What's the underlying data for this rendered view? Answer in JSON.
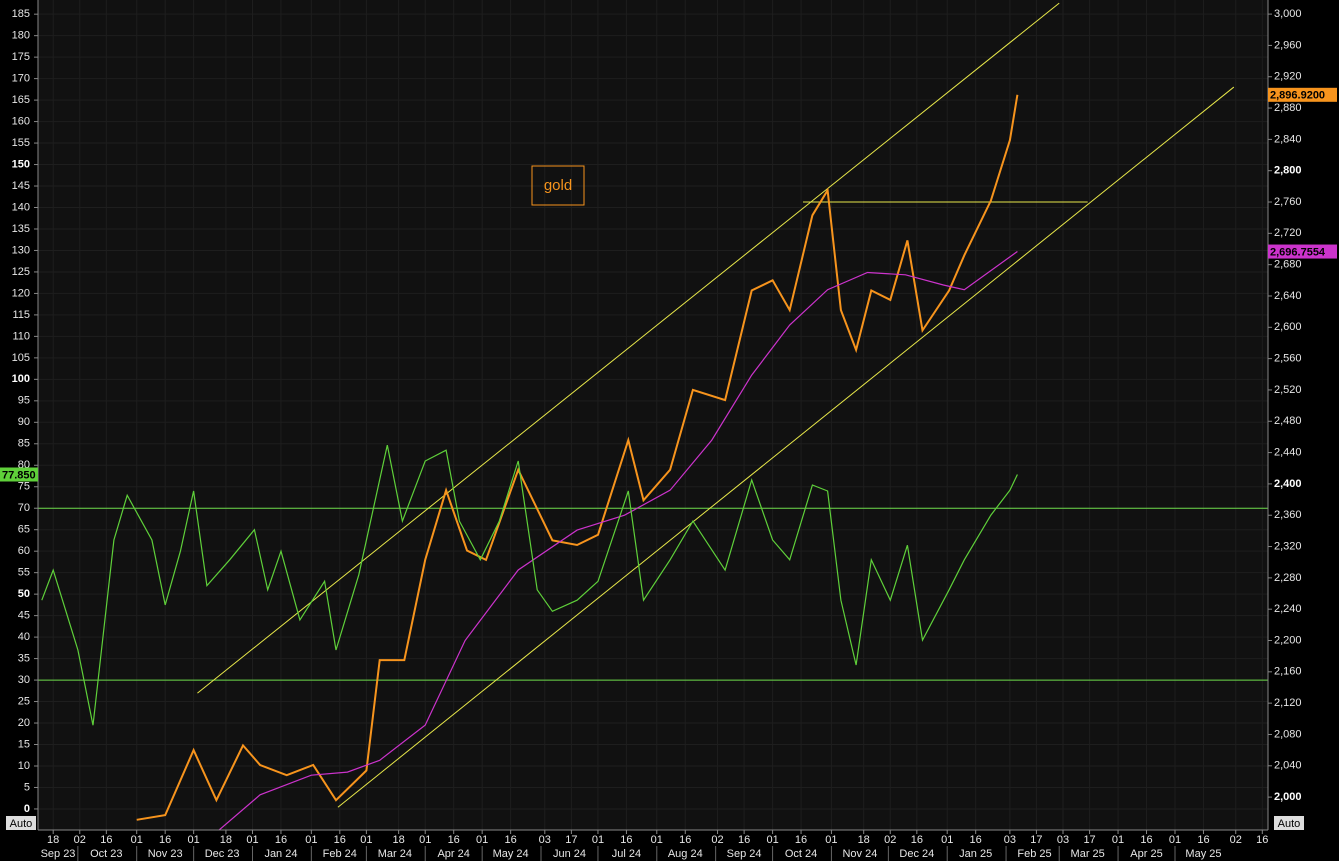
{
  "chart_data": {
    "type": "line",
    "xlim": [
      "2023-09-10",
      "2025-06-19"
    ],
    "ylim": [
      -4.9,
      188.3
    ],
    "y2lim": [
      1958,
      3018
    ],
    "yticks": [
      0,
      5,
      10,
      15,
      20,
      25,
      30,
      35,
      40,
      45,
      50,
      55,
      60,
      65,
      70,
      75,
      80,
      85,
      90,
      95,
      100,
      105,
      110,
      115,
      120,
      125,
      130,
      135,
      140,
      145,
      150,
      155,
      160,
      165,
      170,
      175,
      180,
      185
    ],
    "y2ticks": [
      {
        "value": 2000,
        "label": "2,000"
      },
      {
        "value": 2040,
        "label": "2,040"
      },
      {
        "value": 2080,
        "label": "2,080"
      },
      {
        "value": 2120,
        "label": "2,120"
      },
      {
        "value": 2160,
        "label": "2,160"
      },
      {
        "value": 2200,
        "label": "2,200"
      },
      {
        "value": 2240,
        "label": "2,240"
      },
      {
        "value": 2280,
        "label": "2,280"
      },
      {
        "value": 2320,
        "label": "2,320"
      },
      {
        "value": 2360,
        "label": "2,360"
      },
      {
        "value": 2400,
        "label": "2,400"
      },
      {
        "value": 2440,
        "label": "2,440"
      },
      {
        "value": 2480,
        "label": "2,480"
      },
      {
        "value": 2520,
        "label": "2,520"
      },
      {
        "value": 2560,
        "label": "2,560"
      },
      {
        "value": 2600,
        "label": "2,600"
      },
      {
        "value": 2640,
        "label": "2,640"
      },
      {
        "value": 2680,
        "label": "2,680"
      },
      {
        "value": 2720,
        "label": "2,720"
      },
      {
        "value": 2760,
        "label": "2,760"
      },
      {
        "value": 2800,
        "label": "2,800"
      },
      {
        "value": 2840,
        "label": "2,840"
      },
      {
        "value": 2880,
        "label": "2,880"
      },
      {
        "value": 2920,
        "label": "2,920"
      },
      {
        "value": 2960,
        "label": "2,960"
      },
      {
        "value": 3000,
        "label": "3,000"
      }
    ],
    "xticks": [
      {
        "value": "2023-09-18",
        "label": "18"
      },
      {
        "value": "2023-10-02",
        "label": "02"
      },
      {
        "value": "2023-10-16",
        "label": "16"
      },
      {
        "value": "2023-11-01",
        "label": "01"
      },
      {
        "value": "2023-11-16",
        "label": "16"
      },
      {
        "value": "2023-12-01",
        "label": "01"
      },
      {
        "value": "2023-12-18",
        "label": "18"
      },
      {
        "value": "2024-01-01",
        "label": "01"
      },
      {
        "value": "2024-01-16",
        "label": "16"
      },
      {
        "value": "2024-02-01",
        "label": "01"
      },
      {
        "value": "2024-02-16",
        "label": "16"
      },
      {
        "value": "2024-03-01",
        "label": "01"
      },
      {
        "value": "2024-03-18",
        "label": "18"
      },
      {
        "value": "2024-04-01",
        "label": "01"
      },
      {
        "value": "2024-04-16",
        "label": "16"
      },
      {
        "value": "2024-05-01",
        "label": "01"
      },
      {
        "value": "2024-05-16",
        "label": "16"
      },
      {
        "value": "2024-06-03",
        "label": "03"
      },
      {
        "value": "2024-06-17",
        "label": "17"
      },
      {
        "value": "2024-07-01",
        "label": "01"
      },
      {
        "value": "2024-07-16",
        "label": "16"
      },
      {
        "value": "2024-08-01",
        "label": "01"
      },
      {
        "value": "2024-08-16",
        "label": "16"
      },
      {
        "value": "2024-09-02",
        "label": "02"
      },
      {
        "value": "2024-09-16",
        "label": "16"
      },
      {
        "value": "2024-10-01",
        "label": "01"
      },
      {
        "value": "2024-10-16",
        "label": "16"
      },
      {
        "value": "2024-11-01",
        "label": "01"
      },
      {
        "value": "2024-11-18",
        "label": "18"
      },
      {
        "value": "2024-12-02",
        "label": "02"
      },
      {
        "value": "2024-12-16",
        "label": "16"
      },
      {
        "value": "2025-01-01",
        "label": "01"
      },
      {
        "value": "2025-01-16",
        "label": "16"
      },
      {
        "value": "2025-02-03",
        "label": "03"
      },
      {
        "value": "2025-02-17",
        "label": "17"
      },
      {
        "value": "2025-03-03",
        "label": "03"
      },
      {
        "value": "2025-03-17",
        "label": "17"
      },
      {
        "value": "2025-04-01",
        "label": "01"
      },
      {
        "value": "2025-04-16",
        "label": "16"
      },
      {
        "value": "2025-05-01",
        "label": "01"
      },
      {
        "value": "2025-05-16",
        "label": "16"
      },
      {
        "value": "2025-06-02",
        "label": "02"
      },
      {
        "value": "2025-06-16",
        "label": "16"
      }
    ],
    "month_ticks": [
      {
        "value": "2023-09-01",
        "label": "Sep 23"
      },
      {
        "value": "2023-10-01",
        "label": "Oct 23"
      },
      {
        "value": "2023-11-01",
        "label": "Nov 23"
      },
      {
        "value": "2023-12-01",
        "label": "Dec 23"
      },
      {
        "value": "2024-01-01",
        "label": "Jan 24"
      },
      {
        "value": "2024-02-01",
        "label": "Feb 24"
      },
      {
        "value": "2024-03-01",
        "label": "Mar 24"
      },
      {
        "value": "2024-04-01",
        "label": "Apr 24"
      },
      {
        "value": "2024-05-01",
        "label": "May 24"
      },
      {
        "value": "2024-06-01",
        "label": "Jun 24"
      },
      {
        "value": "2024-07-01",
        "label": "Jul 24"
      },
      {
        "value": "2024-08-01",
        "label": "Aug 24"
      },
      {
        "value": "2024-09-01",
        "label": "Sep 24"
      },
      {
        "value": "2024-10-01",
        "label": "Oct 24"
      },
      {
        "value": "2024-11-01",
        "label": "Nov 24"
      },
      {
        "value": "2024-12-01",
        "label": "Dec 24"
      },
      {
        "value": "2025-01-01",
        "label": "Jan 25"
      },
      {
        "value": "2025-02-01",
        "label": "Feb 25"
      },
      {
        "value": "2025-03-01",
        "label": "Mar 25"
      },
      {
        "value": "2025-04-01",
        "label": "Apr 25"
      },
      {
        "value": "2025-05-01",
        "label": "May 25"
      }
    ],
    "grid": true,
    "series": [
      {
        "name": "gold",
        "color": "#f7941d",
        "axis": "y2",
        "x": [
          "2023-11-01",
          "2023-11-16",
          "2023-12-01",
          "2023-12-13",
          "2023-12-27",
          "2024-01-05",
          "2024-01-19",
          "2024-02-02",
          "2024-02-14",
          "2024-03-01",
          "2024-03-08",
          "2024-03-21",
          "2024-04-01",
          "2024-04-12",
          "2024-04-23",
          "2024-05-03",
          "2024-05-20",
          "2024-06-07",
          "2024-06-20",
          "2024-07-01",
          "2024-07-17",
          "2024-07-25",
          "2024-08-08",
          "2024-08-20",
          "2024-09-06",
          "2024-09-20",
          "2024-10-01",
          "2024-10-10",
          "2024-10-22",
          "2024-10-30",
          "2024-11-06",
          "2024-11-14",
          "2024-11-22",
          "2024-12-02",
          "2024-12-11",
          "2024-12-19",
          "2025-01-02",
          "2025-01-10",
          "2025-01-24",
          "2025-02-03",
          "2025-02-07"
        ],
        "values": [
          1971,
          1977,
          2060,
          1996,
          2066,
          2041,
          2028,
          2041,
          1996,
          2034,
          2175,
          2175,
          2303,
          2392,
          2315,
          2303,
          2418,
          2328,
          2322,
          2335,
          2456,
          2379,
          2418,
          2520,
          2507,
          2647,
          2660,
          2622,
          2743,
          2775,
          2622,
          2571,
          2647,
          2635,
          2711,
          2596,
          2647,
          2692,
          2762,
          2839,
          2896.92
        ],
        "value_labels": [
          null,
          null,
          null,
          null,
          null,
          null,
          null,
          null,
          null,
          null,
          null,
          null,
          null,
          null,
          null,
          null,
          null,
          null,
          null,
          null,
          null,
          null,
          null,
          null,
          null,
          null,
          null,
          null,
          null,
          null,
          null,
          null,
          null,
          null,
          null,
          null,
          null,
          null,
          null,
          null,
          "2,896.9200"
        ]
      },
      {
        "color": "#cc33cc",
        "axis": "y2",
        "x": [
          "2023-12-13",
          "2024-01-05",
          "2024-02-01",
          "2024-02-20",
          "2024-03-08",
          "2024-04-01",
          "2024-04-22",
          "2024-05-20",
          "2024-06-20",
          "2024-07-15",
          "2024-08-08",
          "2024-08-30",
          "2024-09-20",
          "2024-10-10",
          "2024-10-30",
          "2024-11-20",
          "2024-12-10",
          "2024-12-30",
          "2025-01-10",
          "2025-02-07"
        ],
        "values": [
          1955,
          2003,
          2028,
          2032,
          2047,
          2092,
          2200,
          2290,
          2341,
          2360,
          2392,
          2456,
          2539,
          2603,
          2648,
          2670,
          2667,
          2654,
          2648,
          2696.7554
        ],
        "value_labels": [
          null,
          null,
          null,
          null,
          null,
          null,
          null,
          null,
          null,
          null,
          null,
          null,
          null,
          null,
          null,
          null,
          null,
          null,
          null,
          "2,696.7554"
        ]
      },
      {
        "color": "#5fd03a",
        "axis": "y",
        "x": [
          "2023-09-12",
          "2023-09-18",
          "2023-10-01",
          "2023-10-09",
          "2023-10-20",
          "2023-10-27",
          "2023-11-09",
          "2023-11-16",
          "2023-11-24",
          "2023-12-01",
          "2023-12-08",
          "2023-12-20",
          "2024-01-02",
          "2024-01-09",
          "2024-01-16",
          "2024-01-26",
          "2024-02-08",
          "2024-02-14",
          "2024-02-26",
          "2024-03-12",
          "2024-03-20",
          "2024-04-01",
          "2024-04-12",
          "2024-04-19",
          "2024-04-30",
          "2024-05-10",
          "2024-05-20",
          "2024-05-30",
          "2024-06-07",
          "2024-06-20",
          "2024-07-01",
          "2024-07-17",
          "2024-07-25",
          "2024-08-08",
          "2024-08-20",
          "2024-09-06",
          "2024-09-20",
          "2024-10-01",
          "2024-10-10",
          "2024-10-22",
          "2024-10-30",
          "2024-11-06",
          "2024-11-14",
          "2024-11-22",
          "2024-12-02",
          "2024-12-11",
          "2024-12-19",
          "2025-01-02",
          "2025-01-10",
          "2025-01-24",
          "2025-02-03",
          "2025-02-07"
        ],
        "values": [
          48.6,
          55.6,
          37,
          19.5,
          62.6,
          73,
          62.6,
          47.5,
          60,
          74,
          52,
          58,
          65,
          51,
          60,
          44,
          53,
          37,
          54.5,
          84.7,
          67,
          81,
          83.5,
          67,
          58,
          67,
          81,
          51,
          46,
          48.6,
          53,
          74,
          48.6,
          58,
          67,
          55.6,
          76.6,
          62.6,
          58,
          75.4,
          74,
          48.6,
          33.5,
          58,
          48.6,
          61.4,
          39.3,
          51,
          58,
          68.4,
          74.2,
          77.85
        ],
        "value_labels": [
          null,
          null,
          null,
          null,
          null,
          null,
          null,
          null,
          null,
          null,
          null,
          null,
          null,
          null,
          null,
          null,
          null,
          null,
          null,
          null,
          null,
          null,
          null,
          null,
          null,
          null,
          null,
          null,
          null,
          null,
          null,
          null,
          null,
          null,
          null,
          null,
          null,
          null,
          null,
          null,
          null,
          null,
          null,
          null,
          null,
          null,
          null,
          null,
          null,
          null,
          null,
          "77.850"
        ]
      }
    ],
    "lines": [
      {
        "color": "#e8e84a",
        "axis": "y2",
        "x": [
          "2023-12-03",
          "2025-03-01"
        ],
        "values": [
          2132.8,
          3014
        ]
      },
      {
        "color": "#e8e84a",
        "axis": "y2",
        "x": [
          "2024-02-15",
          "2025-06-01"
        ],
        "values": [
          1987,
          2906.8
        ]
      },
      {
        "color": "#e8e84a",
        "axis": "y2",
        "x": [
          "2024-10-17",
          "2025-03-16"
        ],
        "values": [
          2760,
          2760
        ]
      }
    ],
    "hlines": [
      {
        "value": 70,
        "color": "#6ddb4a",
        "axis": "y"
      },
      {
        "value": 30,
        "color": "#6ddb4a",
        "axis": "y"
      }
    ],
    "buttons": [
      "Auto",
      "Auto"
    ]
  }
}
